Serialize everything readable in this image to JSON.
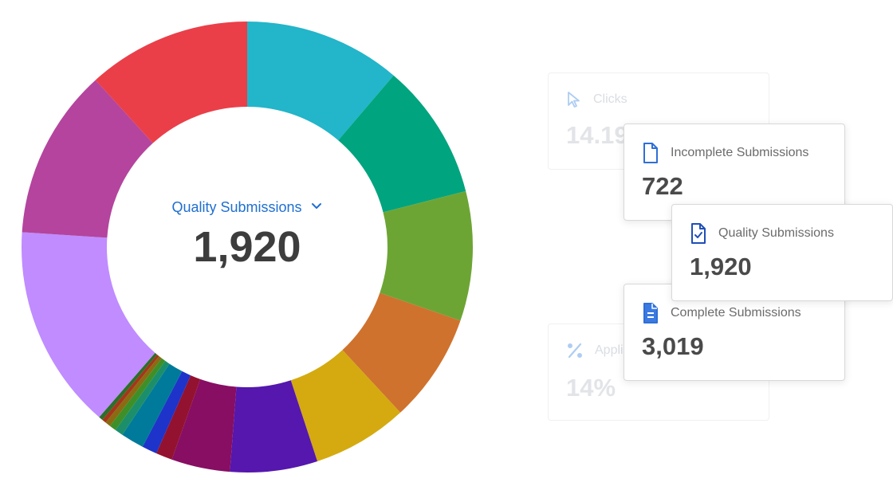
{
  "chart_data": {
    "type": "pie",
    "style": "donut",
    "values": [
      11.5,
      10,
      9.5,
      8,
      7,
      6.4,
      4.3,
      1.2,
      1.1,
      1.7,
      0.6,
      0.5,
      0.4,
      0.3,
      0.3,
      15,
      12.5,
      12
    ],
    "colors": [
      "#23b5c9",
      "#00a47e",
      "#6da535",
      "#cf722e",
      "#d4aa10",
      "#5517ad",
      "#870e63",
      "#93122f",
      "#1e33c9",
      "#007a9a",
      "#1c8f6a",
      "#3f8f28",
      "#8a6b12",
      "#a4361a",
      "#2b6f2b",
      "#c08cff",
      "#b4449e",
      "#ea3f49"
    ],
    "legend": "none"
  },
  "center": {
    "metric_label": "Quality Submissions",
    "metric_value": "1,920"
  },
  "cards": {
    "clicks": {
      "label": "Clicks",
      "value": "14.19k",
      "icon": "cursor-icon"
    },
    "apply_rate": {
      "label": "Applications",
      "value": "14%",
      "icon": "percent-icon"
    },
    "incomplete": {
      "label": "Incomplete Submissions",
      "value": "722",
      "icon": "file-icon"
    },
    "quality": {
      "label": "Quality Submissions",
      "value": "1,920",
      "icon": "file-check-icon"
    },
    "complete": {
      "label": "Complete Submissions",
      "value": "3,019",
      "icon": "file-lines-icon"
    }
  }
}
